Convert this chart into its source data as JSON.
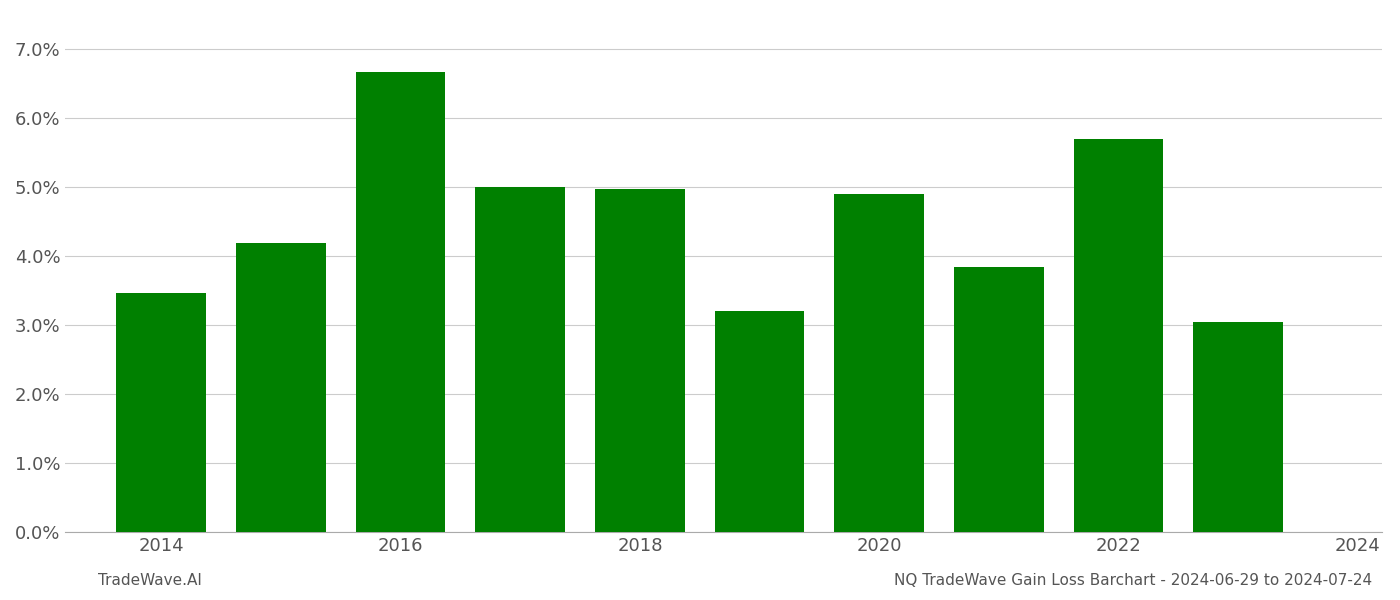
{
  "years": [
    2014,
    2015,
    2016,
    2017,
    2018,
    2019,
    2020,
    2021,
    2022,
    2023
  ],
  "values": [
    0.0347,
    0.042,
    0.0668,
    0.05,
    0.0498,
    0.032,
    0.049,
    0.0385,
    0.057,
    0.0305
  ],
  "bar_color": "#008000",
  "ylim": [
    0.0,
    0.075
  ],
  "yticks": [
    0.0,
    0.01,
    0.02,
    0.03,
    0.04,
    0.05,
    0.06,
    0.07
  ],
  "xlabel": "",
  "ylabel": "",
  "title": "",
  "footer_left": "TradeWave.AI",
  "footer_right": "NQ TradeWave Gain Loss Barchart - 2024-06-29 to 2024-07-24",
  "background_color": "#ffffff",
  "grid_color": "#cccccc",
  "bar_width": 0.75,
  "xtick_fontsize": 13,
  "ytick_fontsize": 13,
  "footer_fontsize": 11,
  "xtick_labels": [
    2014,
    2016,
    2018,
    2020,
    2022,
    2024
  ],
  "start_year": 2014
}
